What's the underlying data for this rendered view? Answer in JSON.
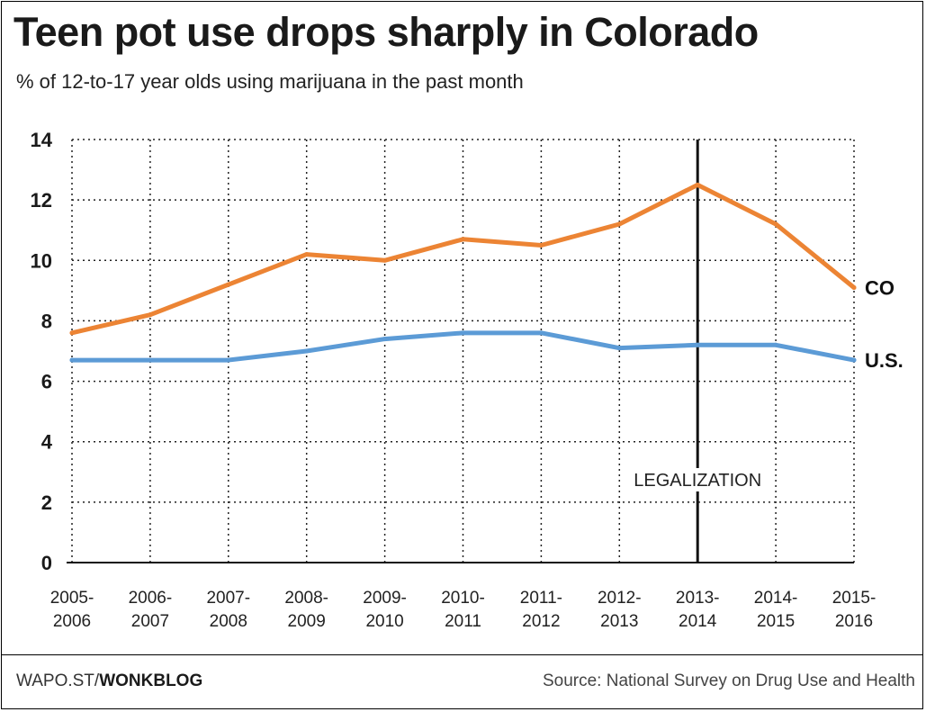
{
  "chart_data": {
    "type": "line",
    "title": "Teen pot use drops sharply in Colorado",
    "subtitle": "% of 12-to-17 year olds using marijuana in the past month",
    "categories": [
      [
        "2005-",
        "2006"
      ],
      [
        "2006-",
        "2007"
      ],
      [
        "2007-",
        "2008"
      ],
      [
        "2008-",
        "2009"
      ],
      [
        "2009-",
        "2010"
      ],
      [
        "2010-",
        "2011"
      ],
      [
        "2011-",
        "2012"
      ],
      [
        "2012-",
        "2013"
      ],
      [
        "2013-",
        "2014"
      ],
      [
        "2014-",
        "2015"
      ],
      [
        "2015-",
        "2016"
      ]
    ],
    "series": [
      {
        "name": "CO",
        "color": "#ec8434",
        "values": [
          7.6,
          8.2,
          9.2,
          10.2,
          10.0,
          10.7,
          10.5,
          11.2,
          12.5,
          11.2,
          9.1
        ]
      },
      {
        "name": "U.S.",
        "color": "#5c9bd6",
        "values": [
          6.7,
          6.7,
          6.7,
          7.0,
          7.4,
          7.6,
          7.6,
          7.1,
          7.2,
          7.2,
          6.7
        ]
      }
    ],
    "ylim": [
      0,
      14
    ],
    "yticks": [
      0,
      2,
      4,
      6,
      8,
      10,
      12,
      14
    ],
    "grid": true,
    "annotation": {
      "text": "LEGALIZATION",
      "category_index": 8
    }
  },
  "footer": {
    "site_prefix": "WAPO.ST/",
    "site_brand": "WONKBLOG",
    "source": "Source: National Survey on Drug Use and Health"
  }
}
